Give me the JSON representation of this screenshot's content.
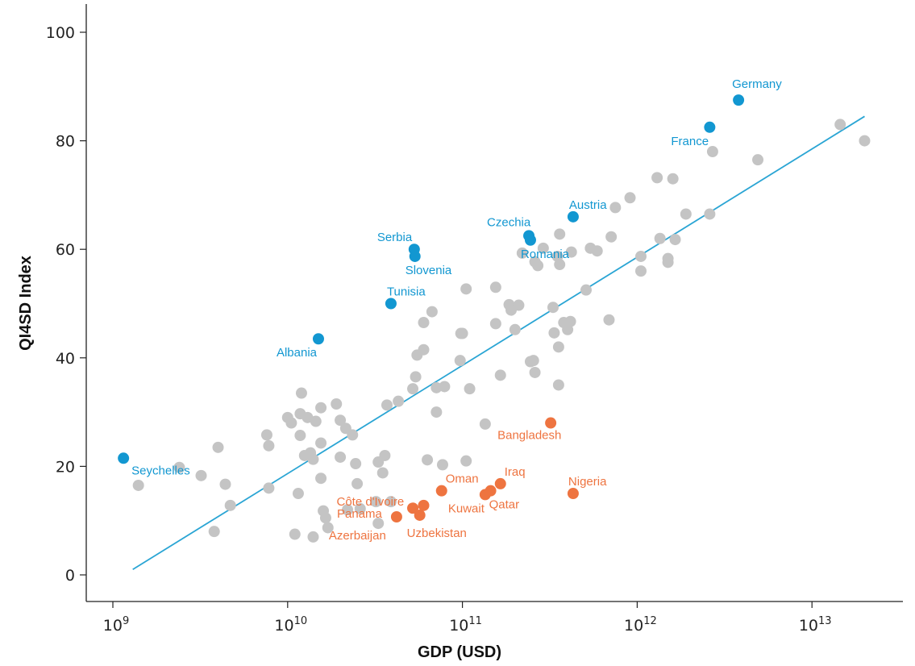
{
  "chart_data": {
    "type": "scatter",
    "xlabel": "GDP (USD)",
    "ylabel": "QI4SD Index",
    "x_scale": "log",
    "xlim": [
      1000000000.0,
      25000000000000.0
    ],
    "ylim": [
      -5,
      105
    ],
    "x_ticks": [
      {
        "value": 1000000000.0,
        "base": "10",
        "exp": "9"
      },
      {
        "value": 10000000000.0,
        "base": "10",
        "exp": "10"
      },
      {
        "value": 100000000000.0,
        "base": "10",
        "exp": "11"
      },
      {
        "value": 1000000000000.0,
        "base": "10",
        "exp": "12"
      },
      {
        "value": 10000000000000.0,
        "base": "10",
        "exp": "13"
      }
    ],
    "y_ticks": [
      0,
      20,
      40,
      60,
      80,
      100
    ],
    "grid": false,
    "colors": {
      "highlight_blue": "#1297d1",
      "highlight_orange": "#ee7440",
      "other": "#c4c4c4",
      "trend": "#2aa5d4"
    },
    "trend_line": {
      "x": [
        1300000000.0,
        20000000000000.0
      ],
      "y": [
        1,
        84.5
      ]
    },
    "series": [
      {
        "group": "top",
        "color": "#1297d1",
        "points": [
          {
            "label": "Germany",
            "x": 3800000000000.0,
            "y": 87.5
          },
          {
            "label": "France",
            "x": 2600000000000.0,
            "y": 82.5
          },
          {
            "label": "Austria",
            "x": 430000000000.0,
            "y": 66
          },
          {
            "label": "Czechia",
            "x": 240000000000.0,
            "y": 62.5
          },
          {
            "label": "Romania",
            "x": 245000000000.0,
            "y": 61.7
          },
          {
            "label": "Serbia",
            "x": 53000000000.0,
            "y": 60
          },
          {
            "label": "Slovenia",
            "x": 53500000000.0,
            "y": 58.7
          },
          {
            "label": "Tunisia",
            "x": 39000000000.0,
            "y": 50
          },
          {
            "label": "Albania",
            "x": 15000000000.0,
            "y": 43.5
          },
          {
            "label": "Seychelles",
            "x": 1150000000.0,
            "y": 21.5
          }
        ]
      },
      {
        "group": "bottom",
        "color": "#ee7440",
        "points": [
          {
            "label": "Bangladesh",
            "x": 320000000000.0,
            "y": 28
          },
          {
            "label": "Iraq",
            "x": 165000000000.0,
            "y": 16.8
          },
          {
            "label": "Oman",
            "x": 76000000000.0,
            "y": 15.5
          },
          {
            "label": "Nigeria",
            "x": 430000000000.0,
            "y": 15
          },
          {
            "label": "Qatar",
            "x": 145000000000.0,
            "y": 15.5
          },
          {
            "label": "Côte d'Ivoire",
            "x": 60000000000.0,
            "y": 12.8
          },
          {
            "label": "Kuwait",
            "x": 135000000000.0,
            "y": 14.8
          },
          {
            "label": "Panama",
            "x": 52000000000.0,
            "y": 12.3
          },
          {
            "label": "Uzbekistan",
            "x": 57000000000.0,
            "y": 11
          },
          {
            "label": "Azerbaijan",
            "x": 42000000000.0,
            "y": 10.7
          }
        ]
      },
      {
        "group": "other",
        "color": "#c4c4c4",
        "points": [
          {
            "x": 1400000000.0,
            "y": 16.5
          },
          {
            "x": 2400000000.0,
            "y": 19.8
          },
          {
            "x": 3200000000.0,
            "y": 18.3
          },
          {
            "x": 3800000000.0,
            "y": 8
          },
          {
            "x": 4000000000.0,
            "y": 23.5
          },
          {
            "x": 4400000000.0,
            "y": 16.7
          },
          {
            "x": 4700000000.0,
            "y": 12.8
          },
          {
            "x": 7600000000.0,
            "y": 25.8
          },
          {
            "x": 7800000000.0,
            "y": 23.8
          },
          {
            "x": 7800000000.0,
            "y": 16
          },
          {
            "x": 10000000000.0,
            "y": 29
          },
          {
            "x": 10500000000.0,
            "y": 28
          },
          {
            "x": 11000000000.0,
            "y": 7.5
          },
          {
            "x": 11500000000.0,
            "y": 15
          },
          {
            "x": 11800000000.0,
            "y": 29.7
          },
          {
            "x": 11800000000.0,
            "y": 25.7
          },
          {
            "x": 12000000000.0,
            "y": 33.5
          },
          {
            "x": 12500000000.0,
            "y": 22
          },
          {
            "x": 13000000000.0,
            "y": 29
          },
          {
            "x": 13500000000.0,
            "y": 22.5
          },
          {
            "x": 14000000000.0,
            "y": 21.3
          },
          {
            "x": 14000000000.0,
            "y": 7
          },
          {
            "x": 14500000000.0,
            "y": 28.3
          },
          {
            "x": 15500000000.0,
            "y": 30.8
          },
          {
            "x": 15500000000.0,
            "y": 24.3
          },
          {
            "x": 15500000000.0,
            "y": 17.8
          },
          {
            "x": 16000000000.0,
            "y": 11.8
          },
          {
            "x": 16500000000.0,
            "y": 10.5
          },
          {
            "x": 17000000000.0,
            "y": 8.7
          },
          {
            "x": 19000000000.0,
            "y": 31.5
          },
          {
            "x": 20000000000.0,
            "y": 28.5
          },
          {
            "x": 20000000000.0,
            "y": 21.7
          },
          {
            "x": 21500000000.0,
            "y": 27
          },
          {
            "x": 22000000000.0,
            "y": 12
          },
          {
            "x": 23500000000.0,
            "y": 25.8
          },
          {
            "x": 24500000000.0,
            "y": 20.5
          },
          {
            "x": 25000000000.0,
            "y": 16.8
          },
          {
            "x": 26000000000.0,
            "y": 12.2
          },
          {
            "x": 32000000000.0,
            "y": 13.5
          },
          {
            "x": 33000000000.0,
            "y": 20.8
          },
          {
            "x": 33000000000.0,
            "y": 9.5
          },
          {
            "x": 35000000000.0,
            "y": 18.8
          },
          {
            "x": 36000000000.0,
            "y": 22
          },
          {
            "x": 37000000000.0,
            "y": 31.3
          },
          {
            "x": 39000000000.0,
            "y": 13.5
          },
          {
            "x": 43000000000.0,
            "y": 32
          },
          {
            "x": 52000000000.0,
            "y": 34.3
          },
          {
            "x": 54000000000.0,
            "y": 36.5
          },
          {
            "x": 55000000000.0,
            "y": 40.5
          },
          {
            "x": 60000000000.0,
            "y": 41.5
          },
          {
            "x": 60000000000.0,
            "y": 46.5
          },
          {
            "x": 63000000000.0,
            "y": 21.2
          },
          {
            "x": 67000000000.0,
            "y": 48.5
          },
          {
            "x": 71000000000.0,
            "y": 30
          },
          {
            "x": 71000000000.0,
            "y": 34.5
          },
          {
            "x": 77000000000.0,
            "y": 20.3
          },
          {
            "x": 79000000000.0,
            "y": 34.7
          },
          {
            "x": 97000000000.0,
            "y": 39.5
          },
          {
            "x": 98000000000.0,
            "y": 44.5
          },
          {
            "x": 100000000000.0,
            "y": 44.5
          },
          {
            "x": 105000000000.0,
            "y": 52.7
          },
          {
            "x": 105000000000.0,
            "y": 21
          },
          {
            "x": 110000000000.0,
            "y": 34.3
          },
          {
            "x": 135000000000.0,
            "y": 27.8
          },
          {
            "x": 155000000000.0,
            "y": 53
          },
          {
            "x": 155000000000.0,
            "y": 46.3
          },
          {
            "x": 165000000000.0,
            "y": 36.8
          },
          {
            "x": 185000000000.0,
            "y": 49.8
          },
          {
            "x": 190000000000.0,
            "y": 48.8
          },
          {
            "x": 200000000000.0,
            "y": 45.2
          },
          {
            "x": 210000000000.0,
            "y": 49.7
          },
          {
            "x": 220000000000.0,
            "y": 59.3
          },
          {
            "x": 245000000000.0,
            "y": 39.3
          },
          {
            "x": 255000000000.0,
            "y": 39.5
          },
          {
            "x": 260000000000.0,
            "y": 37.3
          },
          {
            "x": 260000000000.0,
            "y": 57.7
          },
          {
            "x": 270000000000.0,
            "y": 57
          },
          {
            "x": 290000000000.0,
            "y": 60.2
          },
          {
            "x": 330000000000.0,
            "y": 49.3
          },
          {
            "x": 335000000000.0,
            "y": 44.6
          },
          {
            "x": 350000000000.0,
            "y": 58.7
          },
          {
            "x": 355000000000.0,
            "y": 42
          },
          {
            "x": 355000000000.0,
            "y": 35
          },
          {
            "x": 360000000000.0,
            "y": 57.2
          },
          {
            "x": 360000000000.0,
            "y": 62.8
          },
          {
            "x": 380000000000.0,
            "y": 46.5
          },
          {
            "x": 400000000000.0,
            "y": 45.2
          },
          {
            "x": 415000000000.0,
            "y": 46.7
          },
          {
            "x": 420000000000.0,
            "y": 59.5
          },
          {
            "x": 510000000000.0,
            "y": 52.5
          },
          {
            "x": 540000000000.0,
            "y": 60.2
          },
          {
            "x": 590000000000.0,
            "y": 59.7
          },
          {
            "x": 690000000000.0,
            "y": 47
          },
          {
            "x": 710000000000.0,
            "y": 62.3
          },
          {
            "x": 750000000000.0,
            "y": 67.7
          },
          {
            "x": 910000000000.0,
            "y": 69.5
          },
          {
            "x": 1050000000000.0,
            "y": 58.7
          },
          {
            "x": 1050000000000.0,
            "y": 56
          },
          {
            "x": 1300000000000.0,
            "y": 73.2
          },
          {
            "x": 1350000000000.0,
            "y": 62
          },
          {
            "x": 1500000000000.0,
            "y": 58.3
          },
          {
            "x": 1500000000000.0,
            "y": 57.6
          },
          {
            "x": 1600000000000.0,
            "y": 73
          },
          {
            "x": 1650000000000.0,
            "y": 61.8
          },
          {
            "x": 1900000000000.0,
            "y": 66.5
          },
          {
            "x": 2600000000000.0,
            "y": 66.5
          },
          {
            "x": 2700000000000.0,
            "y": 78
          },
          {
            "x": 4900000000000.0,
            "y": 76.5
          },
          {
            "x": 14500000000000.0,
            "y": 83
          },
          {
            "x": 20000000000000.0,
            "y": 80
          }
        ]
      }
    ]
  }
}
